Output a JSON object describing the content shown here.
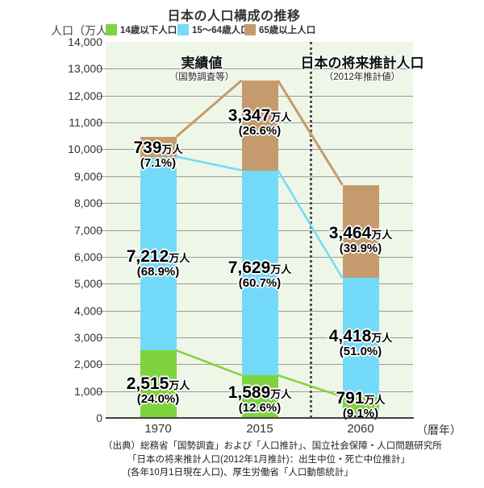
{
  "title": "日本の人口構成の推移",
  "y_axis": {
    "title": "人口（万人）",
    "tick_labels": [
      "0",
      "1,000",
      "2,000",
      "3,000",
      "4,000",
      "5,000",
      "6,000",
      "7,000",
      "8,000",
      "9,000",
      "10,000",
      "11,000",
      "12,000",
      "13,000",
      "14,000"
    ]
  },
  "x_axis": {
    "categories": [
      "1970",
      "2015",
      "2060"
    ],
    "suffix": "（暦年）"
  },
  "legend": {
    "items": [
      {
        "label": "14歳以下人口",
        "color": "#7fd33f"
      },
      {
        "label": "15～64歳人口",
        "color": "#74daf9"
      },
      {
        "label": "65歳以上人口",
        "color": "#c59b6d"
      }
    ]
  },
  "sections": {
    "actual": {
      "title": "実績値",
      "subtitle": "（国勢調査等）"
    },
    "projection": {
      "title": "日本の将来推計人口",
      "subtitle": "（2012年推計値）"
    }
  },
  "source_lines": [
    "（出典）総務省「国勢調査」および「人口推計」、国立社会保障・人口問題研究所",
    "「日本の将来推計人口(2012年1月推計)：出生中位・死亡中位推計」",
    "(各年10月1日現在人口)、厚生労働省「人口動態統計」"
  ],
  "chart_data": {
    "type": "bar",
    "stacked": true,
    "title": "日本の人口構成の推移",
    "ylabel": "人口（万人）",
    "xlabel": "暦年",
    "ylim": [
      0,
      14000
    ],
    "ytick_interval": 1000,
    "grid": true,
    "legend_position": "top",
    "unit": "万人",
    "categories": [
      "1970",
      "2015",
      "2060"
    ],
    "series": [
      {
        "name": "14歳以下人口",
        "key": "age-0-14",
        "color": "#7fd33f",
        "values": [
          2515,
          1589,
          791
        ],
        "values_formatted": [
          "2,515",
          "1,589",
          "791"
        ],
        "percent_labels": [
          "(24.0%)",
          "(12.6%)",
          "(9.1%)"
        ]
      },
      {
        "name": "15～64歳人口",
        "key": "age-15-64",
        "color": "#74daf9",
        "values": [
          7212,
          7629,
          4418
        ],
        "values_formatted": [
          "7,212",
          "7,629",
          "4,418"
        ],
        "percent_labels": [
          "(68.9%)",
          "(60.7%)",
          "(51.0%)"
        ]
      },
      {
        "name": "65歳以上人口",
        "key": "age-65-plus",
        "color": "#c59b6d",
        "values": [
          739,
          3347,
          3464
        ],
        "values_formatted": [
          "739",
          "3,347",
          "3,464"
        ],
        "percent_labels": [
          "(7.1%)",
          "(26.6%)",
          "(39.9%)"
        ]
      }
    ],
    "totals": [
      10466,
      12565,
      8673
    ],
    "divider_between": [
      "2015",
      "2060"
    ],
    "annotations": [
      {
        "text": "実績値（国勢調査等）",
        "applies_to": [
          "1970",
          "2015"
        ]
      },
      {
        "text": "日本の将来推計人口（2012年推計値）",
        "applies_to": [
          "2060"
        ]
      }
    ]
  }
}
